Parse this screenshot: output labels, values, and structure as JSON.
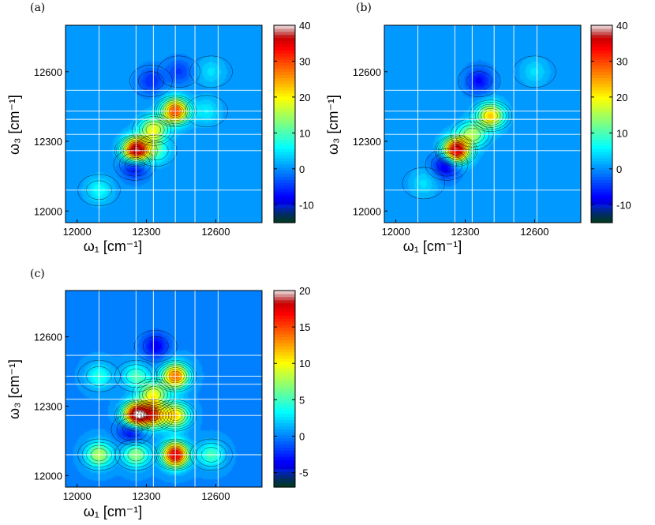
{
  "chart_data": [
    {
      "type": "heatmap",
      "panel_label": "(a)",
      "xlabel": "ω₁ [cm⁻¹]",
      "ylabel": "ω₃ [cm⁻¹]",
      "xlim": [
        11950,
        12800
      ],
      "ylim": [
        11950,
        12800
      ],
      "x_ticks": [
        12000,
        12300,
        12600
      ],
      "y_ticks": [
        12000,
        12300,
        12600
      ],
      "x_grid": [
        12095,
        12255,
        12330,
        12425,
        12510,
        12610
      ],
      "y_grid": [
        12090,
        12260,
        12330,
        12395,
        12430,
        12520
      ],
      "colorbar": {
        "min": -15,
        "max": 40,
        "ticks": [
          -10,
          0,
          10,
          20,
          30,
          40
        ]
      },
      "peaks": [
        {
          "x": 12255,
          "y": 12260,
          "value": 40
        },
        {
          "x": 12425,
          "y": 12430,
          "value": 30
        },
        {
          "x": 12330,
          "y": 12350,
          "value": 18
        },
        {
          "x": 12340,
          "y": 12260,
          "value": 9
        },
        {
          "x": 12095,
          "y": 12090,
          "value": 6
        },
        {
          "x": 12560,
          "y": 12430,
          "value": 5
        },
        {
          "x": 12580,
          "y": 12600,
          "value": 4
        },
        {
          "x": 12250,
          "y": 12200,
          "value": -12
        },
        {
          "x": 12320,
          "y": 12560,
          "value": -6
        },
        {
          "x": 12440,
          "y": 12600,
          "value": -5
        }
      ]
    },
    {
      "type": "heatmap",
      "panel_label": "(b)",
      "xlabel": "ω₁ [cm⁻¹]",
      "ylabel": "ω₃ [cm⁻¹]",
      "xlim": [
        11950,
        12800
      ],
      "ylim": [
        11950,
        12800
      ],
      "x_ticks": [
        12000,
        12300,
        12600
      ],
      "y_ticks": [
        12000,
        12300,
        12600
      ],
      "x_grid": [
        12095,
        12255,
        12330,
        12425,
        12510,
        12610
      ],
      "y_grid": [
        12090,
        12260,
        12330,
        12395,
        12430,
        12520
      ],
      "colorbar": {
        "min": -15,
        "max": 40,
        "ticks": [
          -10,
          0,
          10,
          20,
          30,
          40
        ]
      },
      "peaks": [
        {
          "x": 12260,
          "y": 12260,
          "value": 38
        },
        {
          "x": 12410,
          "y": 12410,
          "value": 22
        },
        {
          "x": 12330,
          "y": 12330,
          "value": 14
        },
        {
          "x": 12120,
          "y": 12120,
          "value": 4
        },
        {
          "x": 12600,
          "y": 12600,
          "value": 4
        },
        {
          "x": 12220,
          "y": 12200,
          "value": -12
        },
        {
          "x": 12360,
          "y": 12560,
          "value": -8
        }
      ]
    },
    {
      "type": "heatmap",
      "panel_label": "(c)",
      "xlabel": "ω₁ [cm⁻¹]",
      "ylabel": "ω₃ [cm⁻¹]",
      "xlim": [
        11950,
        12800
      ],
      "ylim": [
        11950,
        12800
      ],
      "x_ticks": [
        12000,
        12300,
        12600
      ],
      "y_ticks": [
        12000,
        12300,
        12600
      ],
      "x_grid": [
        12095,
        12255,
        12330,
        12425,
        12510,
        12610
      ],
      "y_grid": [
        12090,
        12260,
        12330,
        12395,
        12430,
        12520
      ],
      "colorbar": {
        "min": -7,
        "max": 20,
        "ticks": [
          -5,
          0,
          5,
          10,
          15,
          20
        ]
      },
      "peaks": [
        {
          "x": 12255,
          "y": 12260,
          "value": 20
        },
        {
          "x": 12425,
          "y": 12090,
          "value": 18
        },
        {
          "x": 12425,
          "y": 12430,
          "value": 14
        },
        {
          "x": 12330,
          "y": 12260,
          "value": 12
        },
        {
          "x": 12425,
          "y": 12260,
          "value": 11
        },
        {
          "x": 12330,
          "y": 12350,
          "value": 9
        },
        {
          "x": 12095,
          "y": 12090,
          "value": 8
        },
        {
          "x": 12255,
          "y": 12090,
          "value": 7
        },
        {
          "x": 12255,
          "y": 12430,
          "value": 5
        },
        {
          "x": 12095,
          "y": 12430,
          "value": 4
        },
        {
          "x": 12580,
          "y": 12090,
          "value": 5
        },
        {
          "x": 12240,
          "y": 12200,
          "value": -6
        },
        {
          "x": 12340,
          "y": 12560,
          "value": -4
        }
      ]
    }
  ]
}
